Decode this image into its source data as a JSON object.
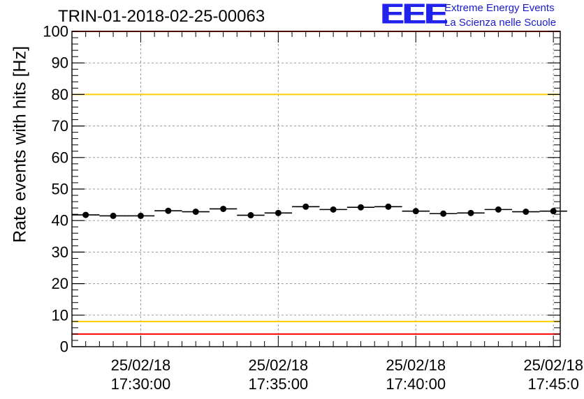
{
  "title": "TRIN-01-2018-02-25-00063",
  "logo": {
    "mark": "EEE",
    "line1": "Extreme Energy Events",
    "line2": "La Scienza nelle Scuole"
  },
  "colors": {
    "upper_alarm": "#ff0000",
    "upper_warning": "#ffcc00",
    "lower_warning": "#ffcc00",
    "lower_alarm": "#ff0000",
    "markers": "#000000",
    "grid": "#999999",
    "logo": "#2222ee"
  },
  "chart_data": {
    "type": "scatter",
    "ylabel": "Rate events with hits [Hz]",
    "ylim": [
      0,
      100
    ],
    "yticks": [
      0,
      10,
      20,
      30,
      40,
      50,
      60,
      70,
      80,
      90,
      100
    ],
    "xlim": [
      "2018-02-25 17:27:30",
      "2018-02-25 17:45:15"
    ],
    "xticks": [
      {
        "date": "25/02/18",
        "time": "17:30:00"
      },
      {
        "date": "25/02/18",
        "time": "17:35:00"
      },
      {
        "date": "25/02/18",
        "time": "17:40:00"
      },
      {
        "date": "25/02/18",
        "time": "17:45:0"
      }
    ],
    "grid": true,
    "reference_lines": [
      {
        "kind": "alarm",
        "y": 100
      },
      {
        "kind": "warning",
        "y": 80
      },
      {
        "kind": "warning",
        "y": 8
      },
      {
        "kind": "alarm",
        "y": 4
      }
    ],
    "series": [
      {
        "x": [
          "17:28:00",
          "17:29:00",
          "17:30:00",
          "17:31:00",
          "17:32:00",
          "17:33:00",
          "17:34:00",
          "17:35:00",
          "17:36:00",
          "17:37:00",
          "17:38:00",
          "17:39:00",
          "17:40:00",
          "17:41:00",
          "17:42:00",
          "17:43:00",
          "17:44:00",
          "17:45:00"
        ],
        "y": [
          41.8,
          41.5,
          41.5,
          43.1,
          42.8,
          43.7,
          41.7,
          42.4,
          44.4,
          43.5,
          44.2,
          44.4,
          43.0,
          42.2,
          42.4,
          43.5,
          42.8,
          43.0
        ]
      }
    ]
  }
}
